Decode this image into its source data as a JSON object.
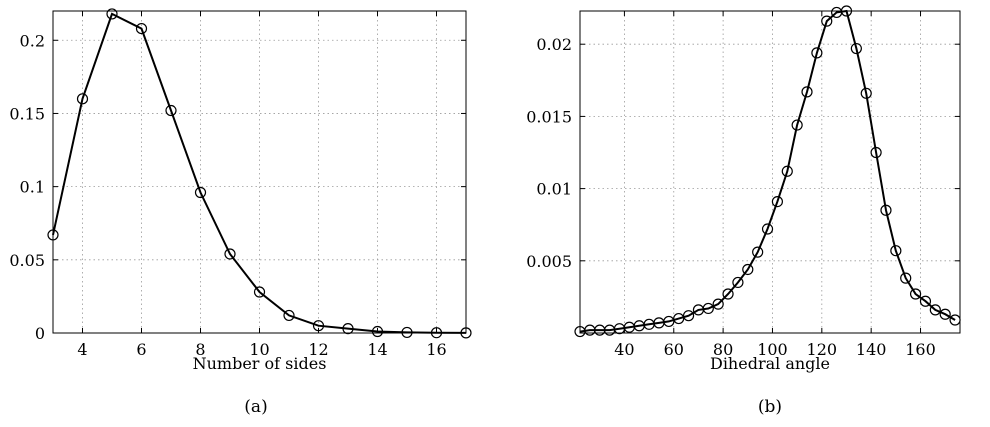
{
  "chart_data": [
    {
      "type": "line",
      "caption": "(a)",
      "title": "",
      "xlabel": "Number of sides",
      "ylabel": "",
      "xlim": [
        3,
        17
      ],
      "ylim": [
        0,
        0.22
      ],
      "xticks": [
        4,
        6,
        8,
        10,
        12,
        14,
        16
      ],
      "yticks": [
        0,
        0.05,
        0.1,
        0.15,
        0.2
      ],
      "xtick_labels": [
        "4",
        "6",
        "8",
        "10",
        "12",
        "14",
        "16"
      ],
      "ytick_labels": [
        "0",
        "0.05",
        "0.1",
        "0.15",
        "0.2"
      ],
      "grid": true,
      "marker": "open-circle",
      "series": [
        {
          "x": [
            3,
            4,
            5,
            6,
            7,
            8,
            9,
            10,
            11,
            12,
            13,
            14,
            15,
            16,
            17
          ],
          "y": [
            0.067,
            0.16,
            0.218,
            0.208,
            0.152,
            0.096,
            0.054,
            0.028,
            0.012,
            0.005,
            0.003,
            0.001,
            0.0004,
            0.0002,
            0.0001
          ]
        }
      ]
    },
    {
      "type": "line",
      "caption": "(b)",
      "title": "",
      "xlabel": "Dihedral angle",
      "ylabel": "",
      "xlim": [
        22,
        176
      ],
      "ylim": [
        0,
        0.0223
      ],
      "xticks": [
        40,
        60,
        80,
        100,
        120,
        140,
        160
      ],
      "yticks": [
        0.005,
        0.01,
        0.015,
        0.02
      ],
      "xtick_labels": [
        "40",
        "60",
        "80",
        "100",
        "120",
        "140",
        "160"
      ],
      "ytick_labels": [
        "0.005",
        "0.01",
        "0.015",
        "0.02"
      ],
      "grid": true,
      "marker": "open-circle",
      "series": [
        {
          "x": [
            22,
            26,
            30,
            34,
            38,
            42,
            46,
            50,
            54,
            58,
            62,
            66,
            70,
            74,
            78,
            82,
            86,
            90,
            94,
            98,
            102,
            106,
            110,
            114,
            118,
            122,
            126,
            130,
            134,
            138,
            142,
            146,
            150,
            154,
            158,
            162,
            166,
            170,
            174
          ],
          "y": [
            0.0001,
            0.0002,
            0.0002,
            0.0002,
            0.0003,
            0.0004,
            0.0005,
            0.0006,
            0.0007,
            0.0008,
            0.001,
            0.0012,
            0.0016,
            0.0017,
            0.002,
            0.0027,
            0.0035,
            0.0044,
            0.0056,
            0.0072,
            0.0091,
            0.0112,
            0.0144,
            0.0167,
            0.0194,
            0.0216,
            0.0222,
            0.0223,
            0.0197,
            0.0166,
            0.0125,
            0.0085,
            0.0057,
            0.0038,
            0.0027,
            0.0022,
            0.0016,
            0.0013,
            0.0009
          ]
        }
      ]
    }
  ]
}
